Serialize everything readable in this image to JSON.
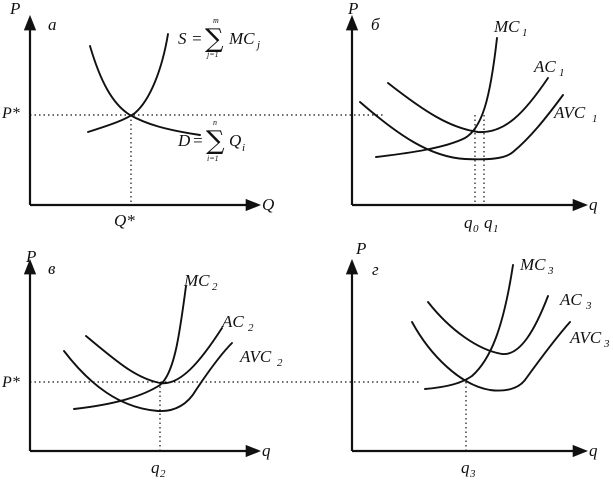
{
  "common": {
    "p_axis": "P",
    "p_star": "P*",
    "market_q_axis": "Q",
    "firm_q_axis": "q"
  },
  "panel_a": {
    "letter": "а",
    "supply_label": "S",
    "supply_sum_top": "m",
    "supply_sum_bottom": "j=1",
    "supply_term": "MC",
    "supply_term_sub": "j",
    "demand_label": "D",
    "demand_sum_top": "n",
    "demand_sum_bottom": "i=1",
    "demand_term": "Q",
    "demand_term_sub": "i",
    "equilibrium_q": "Q*",
    "equals": "=",
    "sigma": "∑"
  },
  "panel_b": {
    "letter": "б",
    "mc": "MC",
    "mc_sub": "1",
    "ac": "AC",
    "ac_sub": "1",
    "avc": "AVC",
    "avc_sub": "1",
    "q0": "q",
    "q0_sub": "0",
    "q1": "q",
    "q1_sub": "1"
  },
  "panel_v": {
    "letter": "в",
    "mc": "MC",
    "mc_sub": "2",
    "ac": "AC",
    "ac_sub": "2",
    "avc": "AVC",
    "avc_sub": "2",
    "q": "q",
    "q_sub": "2"
  },
  "panel_g": {
    "letter": "г",
    "mc": "MC",
    "mc_sub": "3",
    "ac": "AC",
    "ac_sub": "3",
    "avc": "AVC",
    "avc_sub": "3",
    "q": "q",
    "q_sub": "3"
  }
}
